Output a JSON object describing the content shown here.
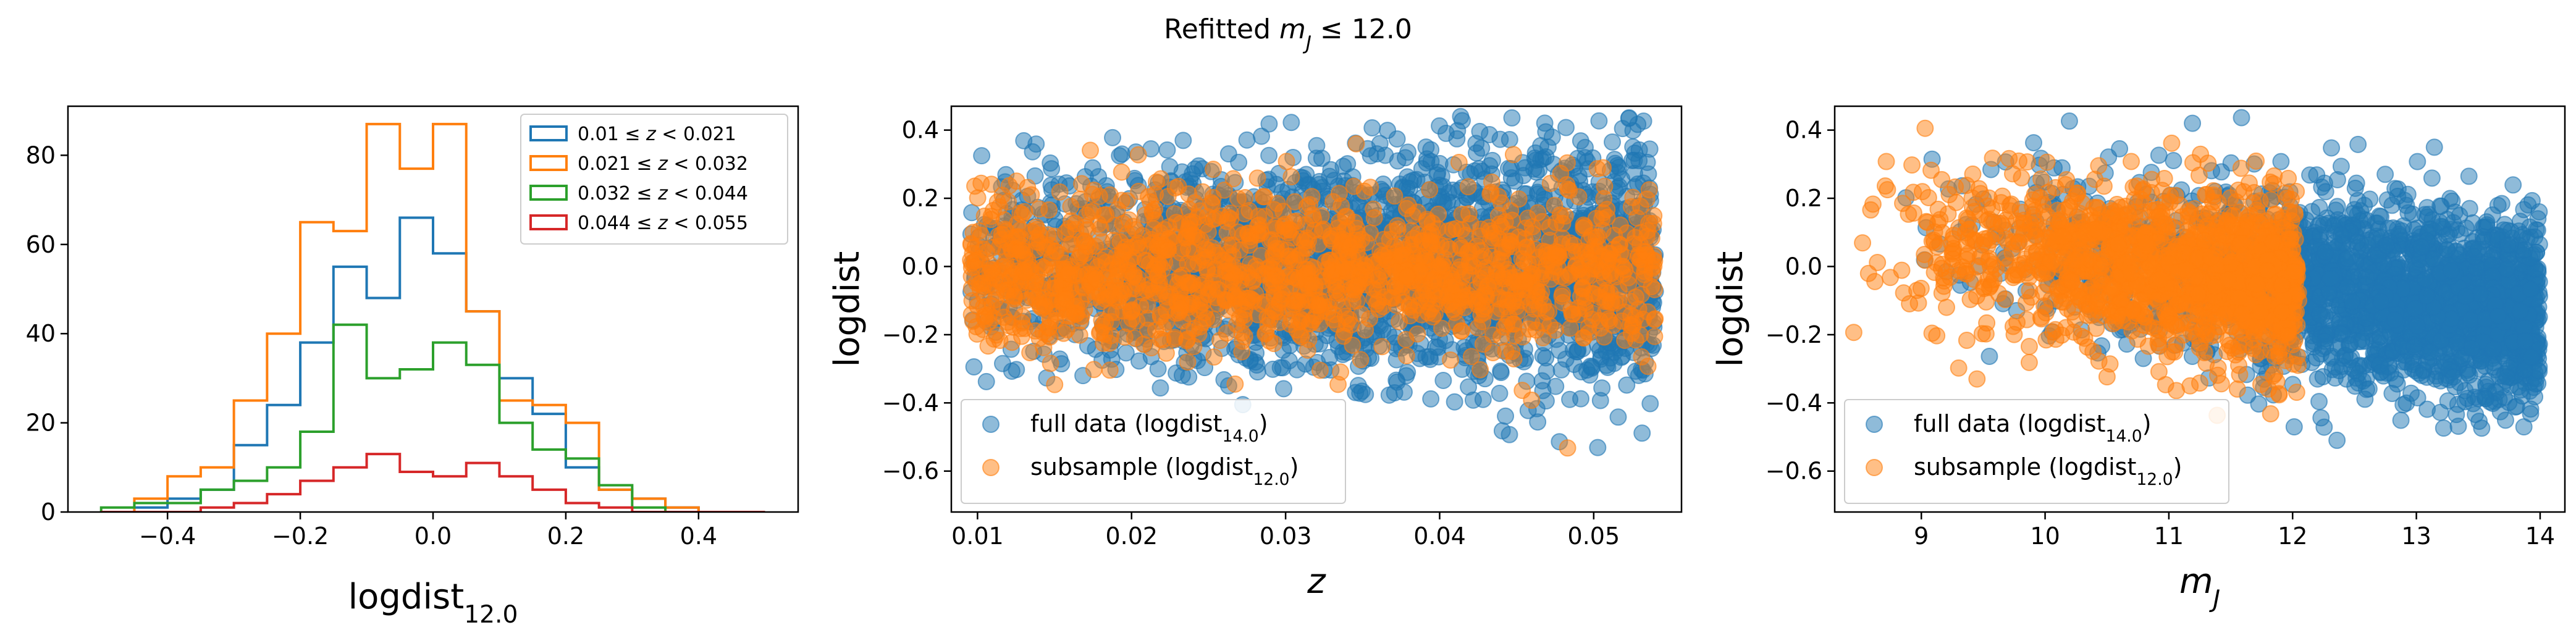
{
  "figure_title": "Refitted m_J ≤ 12.0",
  "colors": {
    "blue": "#1f77b4",
    "orange": "#ff7f0e",
    "green": "#2ca02c",
    "red": "#d62728"
  },
  "chart_data": [
    {
      "type": "histogram",
      "xlabel": "logdist",
      "xlabel_sub": "12.0",
      "ylabel": "",
      "xlim": [
        -0.55,
        0.55
      ],
      "ylim": [
        0,
        91
      ],
      "xticks": [
        "−0.4",
        "−0.2",
        "0.0",
        "0.2",
        "0.4"
      ],
      "xtick_values": [
        -0.4,
        -0.2,
        0.0,
        0.2,
        0.4
      ],
      "yticks": [
        "0",
        "20",
        "40",
        "60",
        "80"
      ],
      "ytick_values": [
        0,
        20,
        40,
        60,
        80
      ],
      "legend_position": "top-right",
      "bin_edges": [
        -0.5,
        -0.45,
        -0.4,
        -0.35,
        -0.3,
        -0.25,
        -0.2,
        -0.15,
        -0.1,
        -0.05,
        0.0,
        0.05,
        0.1,
        0.15,
        0.2,
        0.25,
        0.3,
        0.35,
        0.4,
        0.45,
        0.5
      ],
      "series": [
        {
          "name": "0.01 ≤ z < 0.021",
          "color": "#1f77b4",
          "values": [
            0,
            1,
            3,
            5,
            15,
            24,
            38,
            55,
            48,
            66,
            58,
            45,
            30,
            22,
            10,
            5,
            3,
            1,
            0,
            0
          ]
        },
        {
          "name": "0.021 ≤ z < 0.032",
          "color": "#ff7f0e",
          "values": [
            0,
            3,
            8,
            10,
            25,
            40,
            65,
            63,
            87,
            77,
            87,
            45,
            25,
            24,
            20,
            5,
            3,
            1,
            0,
            0
          ]
        },
        {
          "name": "0.032 ≤ z < 0.044",
          "color": "#2ca02c",
          "values": [
            1,
            2,
            2,
            5,
            7,
            10,
            18,
            42,
            30,
            32,
            38,
            33,
            20,
            14,
            12,
            6,
            1,
            0,
            0,
            0
          ]
        },
        {
          "name": "0.044 ≤ z < 0.055",
          "color": "#d62728",
          "values": [
            0,
            0,
            0,
            1,
            2,
            4,
            7,
            10,
            13,
            9,
            8,
            11,
            8,
            5,
            2,
            1,
            0,
            0,
            0,
            0
          ]
        }
      ]
    },
    {
      "type": "scatter",
      "xlabel": "z",
      "ylabel": "logdist",
      "xlim": [
        0.0083,
        0.0557
      ],
      "ylim": [
        -0.72,
        0.47
      ],
      "xticks": [
        "0.01",
        "0.02",
        "0.03",
        "0.04",
        "0.05"
      ],
      "xtick_values": [
        0.01,
        0.02,
        0.03,
        0.04,
        0.05
      ],
      "yticks": [
        "0.4",
        "0.2",
        "0.0",
        "−0.2",
        "−0.4",
        "−0.6"
      ],
      "ytick_values": [
        0.4,
        0.2,
        0.0,
        -0.2,
        -0.4,
        -0.6
      ],
      "legend_position": "lower-left",
      "series": [
        {
          "name": "full data (logdist",
          "name_sub": "14.0",
          "name_end": ")",
          "color": "#1f77b4",
          "x_range": [
            0.0095,
            0.054
          ],
          "y_center": 0.0,
          "y_spread": 0.13
        },
        {
          "name": "subsample (logdist",
          "name_sub": "12.0",
          "name_end": ")",
          "color": "#ff7f0e",
          "x_range": [
            0.0095,
            0.054
          ],
          "y_center": -0.02,
          "y_spread": 0.12
        }
      ]
    },
    {
      "type": "scatter",
      "xlabel": "m",
      "xlabel_sub": "J",
      "ylabel": "logdist",
      "xlim": [
        8.3,
        14.2
      ],
      "ylim": [
        -0.72,
        0.47
      ],
      "xticks": [
        "9",
        "10",
        "11",
        "12",
        "13",
        "14"
      ],
      "xtick_values": [
        9,
        10,
        11,
        12,
        13,
        14
      ],
      "yticks": [
        "0.4",
        "0.2",
        "0.0",
        "−0.2",
        "−0.4",
        "−0.6"
      ],
      "ytick_values": [
        0.4,
        0.2,
        0.0,
        -0.2,
        -0.4,
        -0.6
      ],
      "legend_position": "lower-left",
      "series": [
        {
          "name": "full data (logdist",
          "name_sub": "14.0",
          "name_end": ")",
          "color": "#1f77b4",
          "x_range": [
            8.6,
            14.0
          ],
          "y_center": 0.0,
          "y_spread": 0.13
        },
        {
          "name": "subsample (logdist",
          "name_sub": "12.0",
          "name_end": ")",
          "color": "#ff7f0e",
          "x_range": [
            8.4,
            12.05
          ],
          "y_center": -0.02,
          "y_spread": 0.12
        }
      ]
    }
  ]
}
